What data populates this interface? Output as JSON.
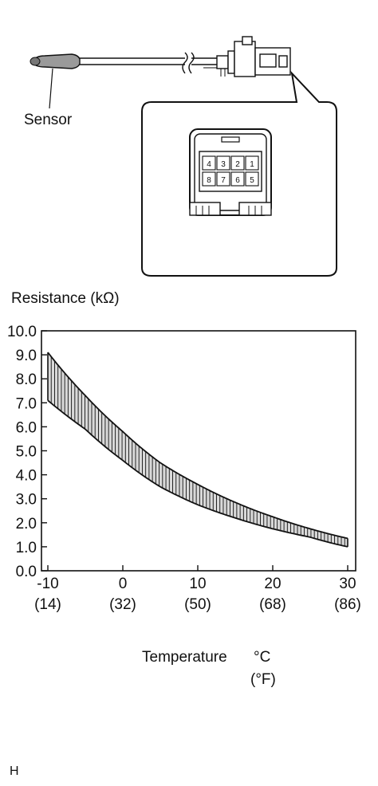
{
  "sensor_label": "Sensor",
  "connector_pins": [
    "4",
    "3",
    "2",
    "1",
    "8",
    "7",
    "6",
    "5"
  ],
  "footer_code": "H",
  "chart_data": {
    "type": "area",
    "ylabel": "Resistance (kΩ)",
    "xlabel": "Temperature",
    "xunit_primary": "°C",
    "xunit_secondary": "(°F)",
    "xlim": [
      -10,
      30
    ],
    "ylim": [
      0,
      10
    ],
    "yticks": [
      "0.0",
      "1.0",
      "2.0",
      "3.0",
      "4.0",
      "5.0",
      "6.0",
      "7.0",
      "8.0",
      "9.0",
      "10.0"
    ],
    "xticks": [
      {
        "value": -10,
        "c": "-10",
        "f": "(14)"
      },
      {
        "value": 0,
        "c": "0",
        "f": "(32)"
      },
      {
        "value": 10,
        "c": "10",
        "f": "(50)"
      },
      {
        "value": 20,
        "c": "20",
        "f": "(68)"
      },
      {
        "value": 30,
        "c": "30",
        "f": "(86)"
      }
    ],
    "grid": false,
    "x": [
      -10,
      -5,
      0,
      5,
      10,
      15,
      20,
      25,
      30
    ],
    "series": [
      {
        "values": [
          9.1,
          7.3,
          5.8,
          4.5,
          3.6,
          2.85,
          2.25,
          1.75,
          1.35
        ]
      },
      {
        "values": [
          7.1,
          5.9,
          4.6,
          3.5,
          2.75,
          2.2,
          1.75,
          1.4,
          1.0
        ]
      }
    ]
  }
}
